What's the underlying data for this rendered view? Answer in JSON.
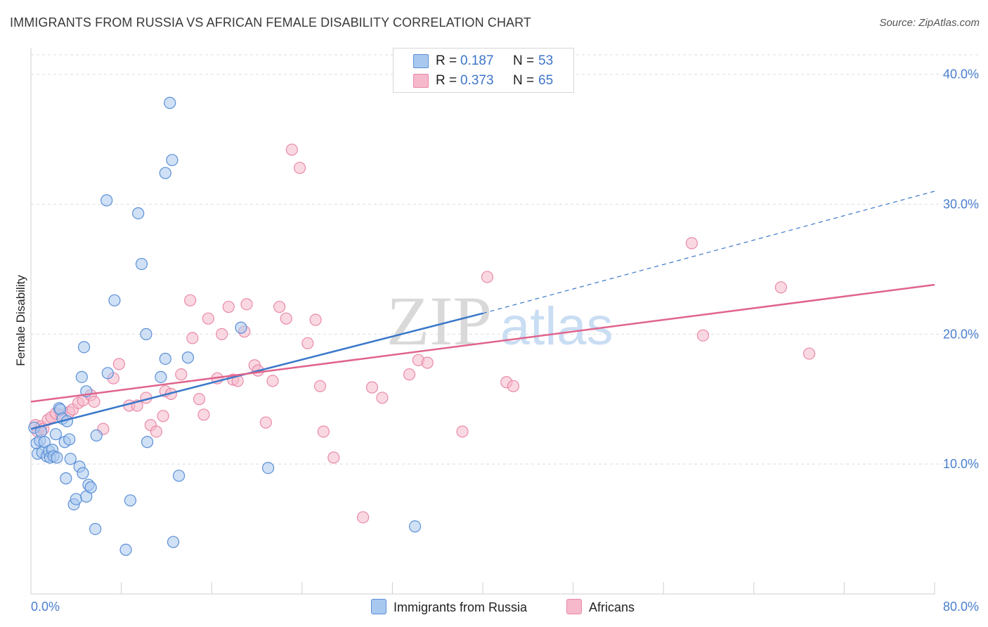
{
  "header": {
    "title": "IMMIGRANTS FROM RUSSIA VS AFRICAN FEMALE DISABILITY CORRELATION CHART",
    "source": "Source: ZipAtlas.com"
  },
  "legend_stats": [
    {
      "r_label": "R =",
      "r_value": "0.187",
      "n_label": "N =",
      "n_value": "53"
    },
    {
      "r_label": "R =",
      "r_value": "0.373",
      "n_label": "N =",
      "n_value": "65"
    }
  ],
  "watermark": {
    "zip": "ZIP",
    "atlas": "atlas"
  },
  "colors": {
    "blue_fill": "#a9c8ef",
    "blue_stroke": "#5b8fd6",
    "blue_line": "#3a78c9",
    "pink_fill": "#f6b8cb",
    "pink_stroke": "#e98aa8",
    "pink_line": "#e0648d",
    "tick_text": "#4a7fcf",
    "grid": "#dddddd"
  },
  "chart_data": {
    "type": "scatter",
    "title": "IMMIGRANTS FROM RUSSIA VS AFRICAN FEMALE DISABILITY CORRELATION CHART",
    "xlabel": "",
    "ylabel": "Female Disability",
    "xlim": [
      0,
      80
    ],
    "ylim": [
      0,
      41.5
    ],
    "x_tick_labels": [
      "0.0%",
      "80.0%"
    ],
    "y_ticks": [
      10,
      20,
      30,
      40
    ],
    "y_tick_labels": [
      "10.0%",
      "20.0%",
      "30.0%",
      "40.0%"
    ],
    "grid": "horizontal dashed",
    "legend_placement": "bottom-center",
    "series": [
      {
        "name": "Immigrants from Russia",
        "color": "#a9c8ef",
        "r": 0.187,
        "n": 53,
        "trend": {
          "x": [
            0,
            40
          ],
          "y": [
            12.7,
            21.6
          ],
          "dashed_to": [
            80,
            31.0
          ]
        },
        "points": [
          [
            0.3,
            12.8
          ],
          [
            0.5,
            11.6
          ],
          [
            0.6,
            10.8
          ],
          [
            0.8,
            11.8
          ],
          [
            0.9,
            12.5
          ],
          [
            1.0,
            10.9
          ],
          [
            1.2,
            11.7
          ],
          [
            1.4,
            10.6
          ],
          [
            1.6,
            11.0
          ],
          [
            1.7,
            10.5
          ],
          [
            1.9,
            11.1
          ],
          [
            2.0,
            10.6
          ],
          [
            2.2,
            12.3
          ],
          [
            2.3,
            10.5
          ],
          [
            2.5,
            14.3
          ],
          [
            2.6,
            14.2
          ],
          [
            2.8,
            13.5
          ],
          [
            3.0,
            11.7
          ],
          [
            3.1,
            8.9
          ],
          [
            3.2,
            13.3
          ],
          [
            3.4,
            11.9
          ],
          [
            3.5,
            10.4
          ],
          [
            3.8,
            6.9
          ],
          [
            4.0,
            7.3
          ],
          [
            4.3,
            9.8
          ],
          [
            4.6,
            9.3
          ],
          [
            4.5,
            16.7
          ],
          [
            4.7,
            19.0
          ],
          [
            4.9,
            15.6
          ],
          [
            4.9,
            7.5
          ],
          [
            5.1,
            8.4
          ],
          [
            5.3,
            8.2
          ],
          [
            5.7,
            5.0
          ],
          [
            5.8,
            12.2
          ],
          [
            6.7,
            30.3
          ],
          [
            6.8,
            17.0
          ],
          [
            7.4,
            22.6
          ],
          [
            8.4,
            3.4
          ],
          [
            8.8,
            7.2
          ],
          [
            9.5,
            29.3
          ],
          [
            9.8,
            25.4
          ],
          [
            10.2,
            20.0
          ],
          [
            10.3,
            11.7
          ],
          [
            11.5,
            16.7
          ],
          [
            11.9,
            32.4
          ],
          [
            11.9,
            18.1
          ],
          [
            12.3,
            37.8
          ],
          [
            12.5,
            33.4
          ],
          [
            12.6,
            4.0
          ],
          [
            13.1,
            9.1
          ],
          [
            13.9,
            18.2
          ],
          [
            18.6,
            20.5
          ],
          [
            21.0,
            9.7
          ],
          [
            34.0,
            5.2
          ]
        ]
      },
      {
        "name": "Africans",
        "color": "#f6b8cb",
        "r": 0.373,
        "n": 65,
        "trend": {
          "x": [
            0,
            80
          ],
          "y": [
            14.8,
            23.8
          ]
        },
        "points": [
          [
            0.4,
            13.0
          ],
          [
            0.6,
            12.5
          ],
          [
            0.9,
            12.9
          ],
          [
            1.1,
            12.7
          ],
          [
            1.5,
            13.4
          ],
          [
            1.8,
            13.6
          ],
          [
            2.2,
            13.9
          ],
          [
            2.7,
            13.8
          ],
          [
            3.4,
            14.0
          ],
          [
            3.7,
            14.2
          ],
          [
            4.2,
            14.7
          ],
          [
            4.6,
            14.9
          ],
          [
            5.3,
            15.3
          ],
          [
            5.6,
            14.8
          ],
          [
            6.4,
            12.7
          ],
          [
            7.3,
            16.6
          ],
          [
            7.8,
            17.7
          ],
          [
            8.7,
            14.5
          ],
          [
            9.4,
            14.5
          ],
          [
            10.2,
            15.1
          ],
          [
            10.6,
            13.0
          ],
          [
            11.1,
            12.5
          ],
          [
            11.7,
            13.7
          ],
          [
            11.9,
            15.6
          ],
          [
            12.4,
            15.4
          ],
          [
            13.3,
            16.9
          ],
          [
            14.1,
            22.6
          ],
          [
            14.3,
            19.7
          ],
          [
            14.9,
            15.0
          ],
          [
            15.3,
            13.8
          ],
          [
            15.7,
            21.2
          ],
          [
            16.5,
            16.6
          ],
          [
            16.9,
            20.0
          ],
          [
            17.5,
            22.1
          ],
          [
            17.9,
            16.5
          ],
          [
            18.3,
            16.4
          ],
          [
            18.9,
            20.2
          ],
          [
            19.1,
            22.3
          ],
          [
            19.8,
            17.6
          ],
          [
            20.1,
            17.2
          ],
          [
            20.8,
            13.2
          ],
          [
            21.4,
            16.4
          ],
          [
            22.0,
            22.1
          ],
          [
            22.6,
            21.2
          ],
          [
            23.1,
            34.2
          ],
          [
            23.8,
            32.8
          ],
          [
            24.5,
            19.3
          ],
          [
            25.2,
            21.1
          ],
          [
            25.6,
            16.0
          ],
          [
            25.9,
            12.5
          ],
          [
            26.8,
            10.5
          ],
          [
            29.4,
            5.9
          ],
          [
            30.2,
            15.9
          ],
          [
            31.1,
            15.1
          ],
          [
            33.5,
            16.9
          ],
          [
            34.3,
            18.0
          ],
          [
            35.1,
            17.8
          ],
          [
            38.2,
            12.5
          ],
          [
            40.4,
            24.4
          ],
          [
            42.1,
            16.3
          ],
          [
            42.7,
            16.0
          ],
          [
            58.5,
            27.0
          ],
          [
            59.5,
            19.9
          ],
          [
            66.4,
            23.6
          ],
          [
            68.9,
            18.5
          ]
        ]
      }
    ]
  }
}
